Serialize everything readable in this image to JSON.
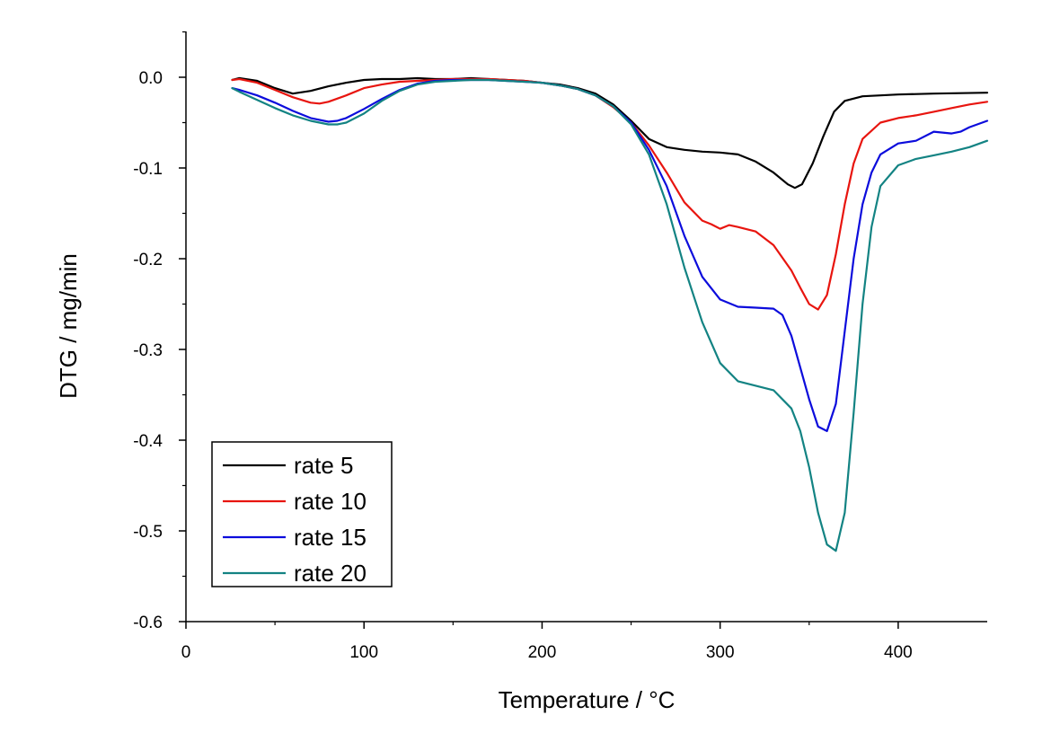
{
  "chart_data": {
    "type": "line",
    "xlabel": "Temperature / °C",
    "ylabel": "DTG / mg/min",
    "xlim": [
      0,
      450
    ],
    "ylim": [
      -0.6,
      0.05
    ],
    "xticks": [
      0,
      100,
      200,
      300,
      400
    ],
    "xtick_labels": [
      "0",
      "100",
      "200",
      "300",
      "400"
    ],
    "yticks": [
      0.0,
      -0.1,
      -0.2,
      -0.3,
      -0.4,
      -0.5,
      -0.6
    ],
    "ytick_labels": [
      "0.0",
      "-0.1",
      "-0.2",
      "-0.3",
      "-0.4",
      "-0.5",
      "-0.6"
    ],
    "grid": false,
    "legend_position": "bottom-left",
    "series": [
      {
        "name": "rate 5",
        "color": "#000000",
        "x": [
          26,
          30,
          40,
          50,
          60,
          70,
          80,
          90,
          100,
          110,
          120,
          130,
          140,
          150,
          160,
          170,
          180,
          190,
          200,
          210,
          220,
          230,
          240,
          250,
          260,
          270,
          280,
          290,
          300,
          310,
          320,
          330,
          338,
          342,
          346,
          352,
          358,
          364,
          370,
          380,
          390,
          400,
          420,
          450
        ],
        "y": [
          -0.003,
          -0.001,
          -0.004,
          -0.012,
          -0.018,
          -0.015,
          -0.01,
          -0.006,
          -0.003,
          -0.002,
          -0.002,
          -0.001,
          -0.002,
          -0.002,
          -0.001,
          -0.002,
          -0.003,
          -0.004,
          -0.006,
          -0.008,
          -0.012,
          -0.018,
          -0.03,
          -0.048,
          -0.068,
          -0.077,
          -0.08,
          -0.082,
          -0.083,
          -0.085,
          -0.093,
          -0.105,
          -0.118,
          -0.122,
          -0.118,
          -0.095,
          -0.065,
          -0.038,
          -0.026,
          -0.021,
          -0.02,
          -0.019,
          -0.018,
          -0.017
        ]
      },
      {
        "name": "rate 10",
        "color": "#e8150f",
        "x": [
          26,
          30,
          40,
          50,
          60,
          70,
          75,
          80,
          90,
          100,
          110,
          120,
          130,
          140,
          150,
          160,
          170,
          180,
          190,
          200,
          210,
          220,
          230,
          240,
          250,
          260,
          270,
          280,
          290,
          295,
          300,
          305,
          310,
          320,
          330,
          340,
          345,
          350,
          355,
          360,
          365,
          370,
          375,
          380,
          390,
          400,
          410,
          420,
          430,
          440,
          450
        ],
        "y": [
          -0.003,
          -0.002,
          -0.006,
          -0.014,
          -0.022,
          -0.028,
          -0.029,
          -0.027,
          -0.02,
          -0.012,
          -0.008,
          -0.005,
          -0.004,
          -0.003,
          -0.002,
          -0.002,
          -0.002,
          -0.003,
          -0.004,
          -0.006,
          -0.009,
          -0.013,
          -0.02,
          -0.033,
          -0.05,
          -0.075,
          -0.105,
          -0.138,
          -0.158,
          -0.162,
          -0.167,
          -0.163,
          -0.165,
          -0.17,
          -0.185,
          -0.213,
          -0.232,
          -0.25,
          -0.256,
          -0.24,
          -0.195,
          -0.14,
          -0.095,
          -0.068,
          -0.05,
          -0.045,
          -0.042,
          -0.038,
          -0.034,
          -0.03,
          -0.027
        ]
      },
      {
        "name": "rate 15",
        "color": "#0c0cdc",
        "x": [
          26,
          30,
          40,
          50,
          60,
          70,
          80,
          85,
          90,
          100,
          110,
          120,
          130,
          140,
          150,
          160,
          170,
          180,
          190,
          200,
          210,
          220,
          230,
          240,
          250,
          260,
          270,
          280,
          290,
          300,
          310,
          320,
          330,
          335,
          340,
          345,
          350,
          355,
          360,
          365,
          370,
          375,
          380,
          385,
          390,
          400,
          410,
          420,
          430,
          435,
          440,
          450
        ],
        "y": [
          -0.012,
          -0.014,
          -0.02,
          -0.028,
          -0.037,
          -0.045,
          -0.049,
          -0.048,
          -0.045,
          -0.035,
          -0.024,
          -0.014,
          -0.007,
          -0.004,
          -0.003,
          -0.003,
          -0.003,
          -0.004,
          -0.005,
          -0.006,
          -0.009,
          -0.013,
          -0.02,
          -0.032,
          -0.05,
          -0.08,
          -0.12,
          -0.175,
          -0.22,
          -0.245,
          -0.253,
          -0.254,
          -0.255,
          -0.262,
          -0.285,
          -0.32,
          -0.355,
          -0.385,
          -0.39,
          -0.36,
          -0.28,
          -0.2,
          -0.14,
          -0.105,
          -0.085,
          -0.073,
          -0.07,
          -0.06,
          -0.062,
          -0.06,
          -0.055,
          -0.048
        ]
      },
      {
        "name": "rate 20",
        "color": "#138383",
        "x": [
          26,
          30,
          40,
          50,
          60,
          70,
          80,
          85,
          90,
          100,
          110,
          120,
          130,
          140,
          150,
          160,
          170,
          180,
          190,
          200,
          210,
          220,
          230,
          240,
          250,
          260,
          270,
          280,
          290,
          300,
          310,
          320,
          330,
          340,
          345,
          350,
          355,
          360,
          365,
          370,
          375,
          380,
          385,
          390,
          400,
          410,
          420,
          430,
          440,
          450
        ],
        "y": [
          -0.012,
          -0.016,
          -0.025,
          -0.034,
          -0.042,
          -0.048,
          -0.052,
          -0.052,
          -0.05,
          -0.04,
          -0.026,
          -0.015,
          -0.008,
          -0.005,
          -0.004,
          -0.003,
          -0.003,
          -0.004,
          -0.005,
          -0.006,
          -0.009,
          -0.013,
          -0.02,
          -0.032,
          -0.052,
          -0.085,
          -0.14,
          -0.21,
          -0.27,
          -0.315,
          -0.335,
          -0.34,
          -0.345,
          -0.365,
          -0.39,
          -0.43,
          -0.48,
          -0.515,
          -0.522,
          -0.48,
          -0.37,
          -0.25,
          -0.165,
          -0.12,
          -0.097,
          -0.09,
          -0.086,
          -0.082,
          -0.077,
          -0.07
        ]
      }
    ]
  }
}
